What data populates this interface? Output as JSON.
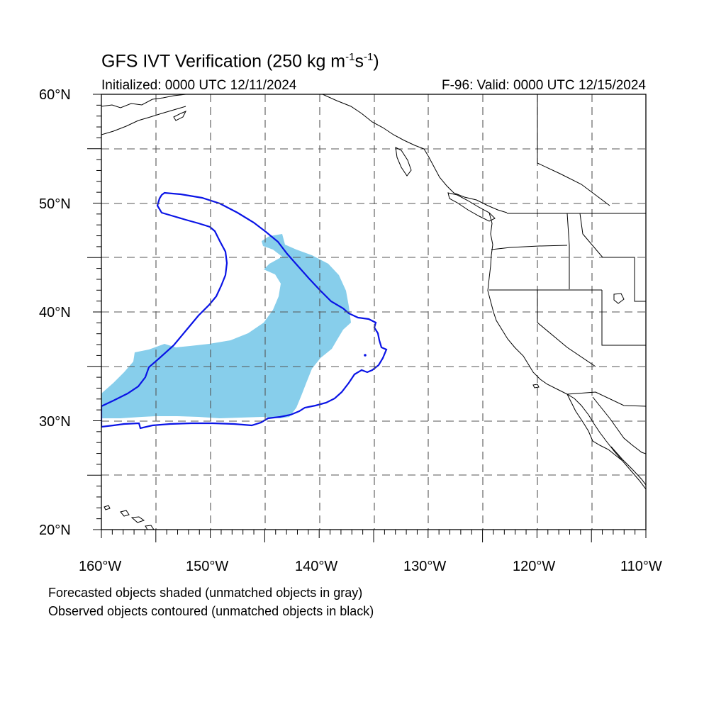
{
  "header": {
    "title_main": "GFS IVT Verification (250 kg m",
    "title_sup1": "-1",
    "title_mid": "s",
    "title_sup2": "-1",
    "title_end": ")",
    "initialized": "Initialized: 0000 UTC 12/11/2024",
    "valid": "F-96: Valid: 0000 UTC 12/15/2024"
  },
  "axes": {
    "lat_labels": [
      {
        "lat": 60,
        "text": "60°N"
      },
      {
        "lat": 50,
        "text": "50°N"
      },
      {
        "lat": 40,
        "text": "40°N"
      },
      {
        "lat": 30,
        "text": "30°N"
      },
      {
        "lat": 20,
        "text": "20°N"
      }
    ],
    "lon_labels": [
      {
        "lon": -160,
        "text": "160°W"
      },
      {
        "lon": -150,
        "text": "150°W"
      },
      {
        "lon": -140,
        "text": "140°W"
      },
      {
        "lon": -130,
        "text": "130°W"
      },
      {
        "lon": -120,
        "text": "120°W"
      },
      {
        "lon": -110,
        "text": "110°W"
      }
    ],
    "lon_range": [
      -160,
      -110
    ],
    "lat_range": [
      20,
      60
    ],
    "grid": "dashed every 5 degrees"
  },
  "legend": {
    "forecast_caption": "Forecasted objects shaded (unmatched objects in gray)",
    "observed_caption": "Observed objects contoured (unmatched objects in black)"
  },
  "colors": {
    "forecast_fill": "#87ceeb",
    "observed_contour": "#0a14e6",
    "coastline": "#000000",
    "grid": "#555555"
  }
}
